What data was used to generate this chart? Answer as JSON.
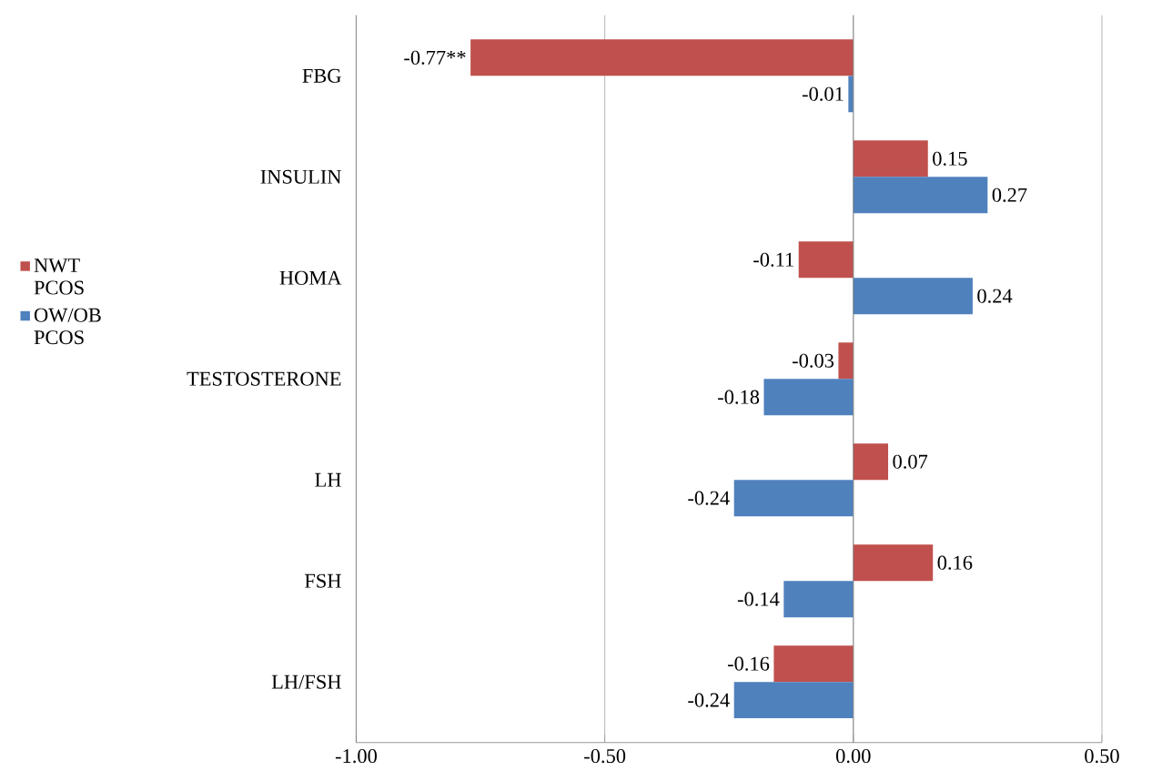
{
  "chart_data": {
    "type": "bar",
    "orientation": "horizontal",
    "categories": [
      "FBG",
      "INSULIN",
      "HOMA",
      "TESTOSTERONE",
      "LH",
      "FSH",
      "LH/FSH"
    ],
    "series": [
      {
        "name": "NWT PCOS",
        "color": "#c0504d",
        "values": [
          -0.77,
          0.15,
          -0.11,
          -0.03,
          0.07,
          0.16,
          -0.16
        ],
        "value_labels": [
          "-0.77**",
          "0.15",
          "-0.11",
          "-0.03",
          "0.07",
          "0.16",
          "-0.16"
        ]
      },
      {
        "name": "OW/OB PCOS",
        "color": "#4f81bd",
        "values": [
          -0.01,
          0.27,
          0.24,
          -0.18,
          -0.24,
          -0.14,
          -0.24
        ],
        "value_labels": [
          "-0.01",
          "0.27",
          "0.24",
          "-0.18",
          "-0.24",
          "-0.14",
          "-0.24"
        ]
      }
    ],
    "xlim": [
      -1,
      0.5
    ],
    "xticks": [
      {
        "value": -1,
        "label": "-1.00"
      },
      {
        "value": -0.5,
        "label": "-0.50"
      },
      {
        "value": 0,
        "label": "0.00"
      },
      {
        "value": 0.5,
        "label": "0.50"
      }
    ],
    "grid": "x",
    "legend": "left"
  }
}
